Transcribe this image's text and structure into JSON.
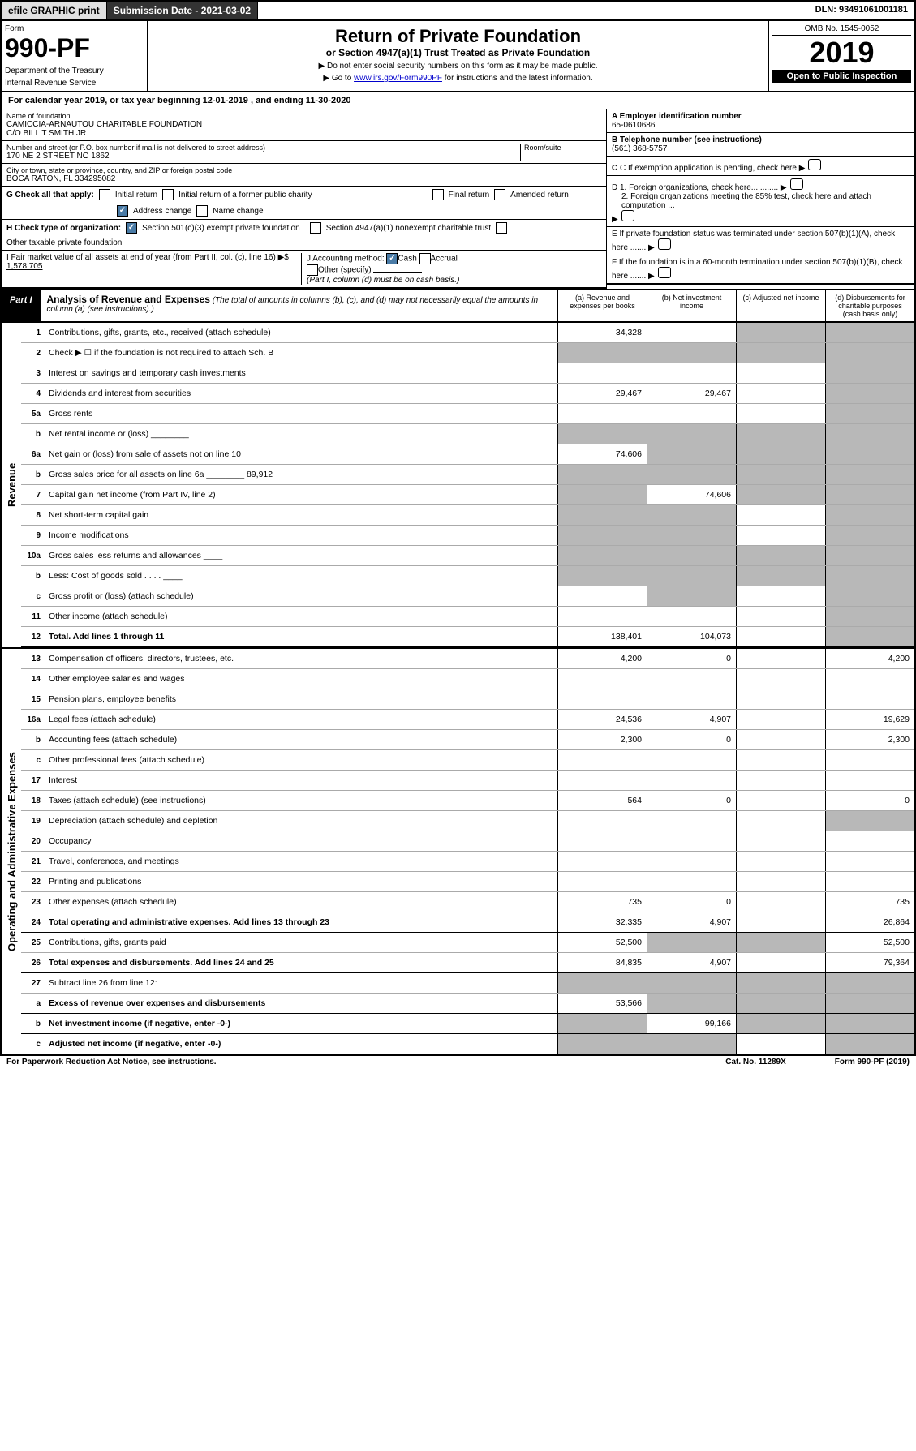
{
  "top": {
    "efile": "efile GRAPHIC print",
    "submission": "Submission Date - 2021-03-02",
    "dln": "DLN: 93491061001181"
  },
  "header": {
    "form_label": "Form",
    "form_number": "990-PF",
    "dept1": "Department of the Treasury",
    "dept2": "Internal Revenue Service",
    "title": "Return of Private Foundation",
    "subtitle": "or Section 4947(a)(1) Trust Treated as Private Foundation",
    "instr1": "▶ Do not enter social security numbers on this form as it may be made public.",
    "instr2_pre": "▶ Go to ",
    "instr2_link": "www.irs.gov/Form990PF",
    "instr2_post": " for instructions and the latest information.",
    "omb": "OMB No. 1545-0052",
    "year": "2019",
    "open": "Open to Public Inspection"
  },
  "cal": "For calendar year 2019, or tax year beginning 12-01-2019                              , and ending 11-30-2020",
  "name_block": {
    "label": "Name of foundation",
    "line1": "CAMICCIA-ARNAUTOU CHARITABLE FOUNDATION",
    "line2": "C/O BILL T SMITH JR"
  },
  "addr_block": {
    "label": "Number and street (or P.O. box number if mail is not delivered to street address)",
    "value": "170 NE 2 STREET NO 1862",
    "room_label": "Room/suite"
  },
  "city_block": {
    "label": "City or town, state or province, country, and ZIP or foreign postal code",
    "value": "BOCA RATON, FL  334295082"
  },
  "a_block": {
    "label": "A Employer identification number",
    "value": "65-0610686"
  },
  "b_block": {
    "label": "B Telephone number (see instructions)",
    "value": "(561) 368-5757"
  },
  "c_block": "C If exemption application is pending, check here",
  "d_block": {
    "d1": "D 1. Foreign organizations, check here............",
    "d2": "2. Foreign organizations meeting the 85% test, check here and attach computation ..."
  },
  "e_block": "E  If private foundation status was terminated under section 507(b)(1)(A), check here .......",
  "f_block": "F  If the foundation is in a 60-month termination under section 507(b)(1)(B), check here .......",
  "g_block": {
    "label": "G Check all that apply:",
    "opts": [
      "Initial return",
      "Initial return of a former public charity",
      "Final return",
      "Amended return",
      "Address change",
      "Name change"
    ]
  },
  "h_block": {
    "label": "H Check type of organization:",
    "opts": [
      "Section 501(c)(3) exempt private foundation",
      "Section 4947(a)(1) nonexempt charitable trust",
      "Other taxable private foundation"
    ]
  },
  "i_block": {
    "label": "I Fair market value of all assets at end of year (from Part II, col. (c), line 16) ▶$",
    "value": "1,578,705"
  },
  "j_block": {
    "label": "J Accounting method:",
    "opts": [
      "Cash",
      "Accrual",
      "Other (specify)"
    ],
    "note": "(Part I, column (d) must be on cash basis.)"
  },
  "part1": {
    "tag": "Part I",
    "title": "Analysis of Revenue and Expenses",
    "title_note": " (The total of amounts in columns (b), (c), and (d) may not necessarily equal the amounts in column (a) (see instructions).)",
    "cols": [
      "(a)   Revenue and expenses per books",
      "(b)  Net investment income",
      "(c)  Adjusted net income",
      "(d)  Disbursements for charitable purposes (cash basis only)"
    ]
  },
  "revenue_label": "Revenue",
  "expenses_label": "Operating and Administrative Expenses",
  "rows_rev": [
    {
      "n": "1",
      "d": "Contributions, gifts, grants, etc., received (attach schedule)",
      "a": "34,328",
      "b": "",
      "c_shade": true,
      "dcol": "",
      "d_shade": true
    },
    {
      "n": "2",
      "d": "Check ▶ ☐ if the foundation is not required to attach Sch. B",
      "allshade": true
    },
    {
      "n": "3",
      "d": "Interest on savings and temporary cash investments",
      "a": "",
      "b": "",
      "c": "",
      "dcol": "",
      "d_shade": true
    },
    {
      "n": "4",
      "d": "Dividends and interest from securities",
      "a": "29,467",
      "b": "29,467",
      "c": "",
      "dcol": "",
      "d_shade": true
    },
    {
      "n": "5a",
      "d": "Gross rents",
      "a": "",
      "b": "",
      "c": "",
      "dcol": "",
      "d_shade": true
    },
    {
      "n": "b",
      "d": "Net rental income or (loss) ________",
      "allshade": true
    },
    {
      "n": "6a",
      "d": "Net gain or (loss) from sale of assets not on line 10",
      "a": "74,606",
      "b_shade": true,
      "c_shade": true,
      "d_shade": true
    },
    {
      "n": "b",
      "d": "Gross sales price for all assets on line 6a ________ 89,912",
      "allshade": true
    },
    {
      "n": "7",
      "d": "Capital gain net income (from Part IV, line 2)",
      "a_shade": true,
      "b": "74,606",
      "c_shade": true,
      "d_shade": true
    },
    {
      "n": "8",
      "d": "Net short-term capital gain",
      "a_shade": true,
      "b_shade": true,
      "c": "",
      "d_shade": true
    },
    {
      "n": "9",
      "d": "Income modifications",
      "a_shade": true,
      "b_shade": true,
      "c": "",
      "d_shade": true
    },
    {
      "n": "10a",
      "d": "Gross sales less returns and allowances  ____",
      "allshade": true
    },
    {
      "n": "b",
      "d": "Less: Cost of goods sold     . . . .  ____",
      "allshade": true
    },
    {
      "n": "c",
      "d": "Gross profit or (loss) (attach schedule)",
      "a": "",
      "b_shade": true,
      "c": "",
      "d_shade": true
    },
    {
      "n": "11",
      "d": "Other income (attach schedule)",
      "a": "",
      "b": "",
      "c": "",
      "d_shade": true
    },
    {
      "n": "12",
      "d": "Total. Add lines 1 through 11",
      "bold": true,
      "a": "138,401",
      "b": "104,073",
      "c": "",
      "d_shade": true
    }
  ],
  "rows_exp": [
    {
      "n": "13",
      "d": "Compensation of officers, directors, trustees, etc.",
      "a": "4,200",
      "b": "0",
      "c": "",
      "dcol": "4,200"
    },
    {
      "n": "14",
      "d": "Other employee salaries and wages",
      "a": "",
      "b": "",
      "c": "",
      "dcol": ""
    },
    {
      "n": "15",
      "d": "Pension plans, employee benefits",
      "a": "",
      "b": "",
      "c": "",
      "dcol": ""
    },
    {
      "n": "16a",
      "d": "Legal fees (attach schedule)",
      "a": "24,536",
      "b": "4,907",
      "c": "",
      "dcol": "19,629"
    },
    {
      "n": "b",
      "d": "Accounting fees (attach schedule)",
      "a": "2,300",
      "b": "0",
      "c": "",
      "dcol": "2,300"
    },
    {
      "n": "c",
      "d": "Other professional fees (attach schedule)",
      "a": "",
      "b": "",
      "c": "",
      "dcol": ""
    },
    {
      "n": "17",
      "d": "Interest",
      "a": "",
      "b": "",
      "c": "",
      "dcol": ""
    },
    {
      "n": "18",
      "d": "Taxes (attach schedule) (see instructions)",
      "a": "564",
      "b": "0",
      "c": "",
      "dcol": "0"
    },
    {
      "n": "19",
      "d": "Depreciation (attach schedule) and depletion",
      "a": "",
      "b": "",
      "c": "",
      "d_shade": true
    },
    {
      "n": "20",
      "d": "Occupancy",
      "a": "",
      "b": "",
      "c": "",
      "dcol": ""
    },
    {
      "n": "21",
      "d": "Travel, conferences, and meetings",
      "a": "",
      "b": "",
      "c": "",
      "dcol": ""
    },
    {
      "n": "22",
      "d": "Printing and publications",
      "a": "",
      "b": "",
      "c": "",
      "dcol": ""
    },
    {
      "n": "23",
      "d": "Other expenses (attach schedule)",
      "a": "735",
      "b": "0",
      "c": "",
      "dcol": "735"
    },
    {
      "n": "24",
      "d": "Total operating and administrative expenses. Add lines 13 through 23",
      "bold": true,
      "a": "32,335",
      "b": "4,907",
      "c": "",
      "dcol": "26,864"
    },
    {
      "n": "25",
      "d": "Contributions, gifts, grants paid",
      "a": "52,500",
      "b_shade": true,
      "c_shade": true,
      "dcol": "52,500"
    },
    {
      "n": "26",
      "d": "Total expenses and disbursements. Add lines 24 and 25",
      "bold": true,
      "a": "84,835",
      "b": "4,907",
      "c": "",
      "dcol": "79,364"
    },
    {
      "n": "27",
      "d": "Subtract line 26 from line 12:",
      "allshade": true
    },
    {
      "n": "a",
      "d": "Excess of revenue over expenses and disbursements",
      "bold": true,
      "a": "53,566",
      "b_shade": true,
      "c_shade": true,
      "d_shade": true
    },
    {
      "n": "b",
      "d": "Net investment income (if negative, enter -0-)",
      "bold": true,
      "a_shade": true,
      "b": "99,166",
      "c_shade": true,
      "d_shade": true
    },
    {
      "n": "c",
      "d": "Adjusted net income (if negative, enter -0-)",
      "bold": true,
      "a_shade": true,
      "b_shade": true,
      "c": "",
      "d_shade": true
    }
  ],
  "footer": {
    "left": "For Paperwork Reduction Act Notice, see instructions.",
    "mid": "Cat. No. 11289X",
    "right": "Form 990-PF (2019)"
  }
}
